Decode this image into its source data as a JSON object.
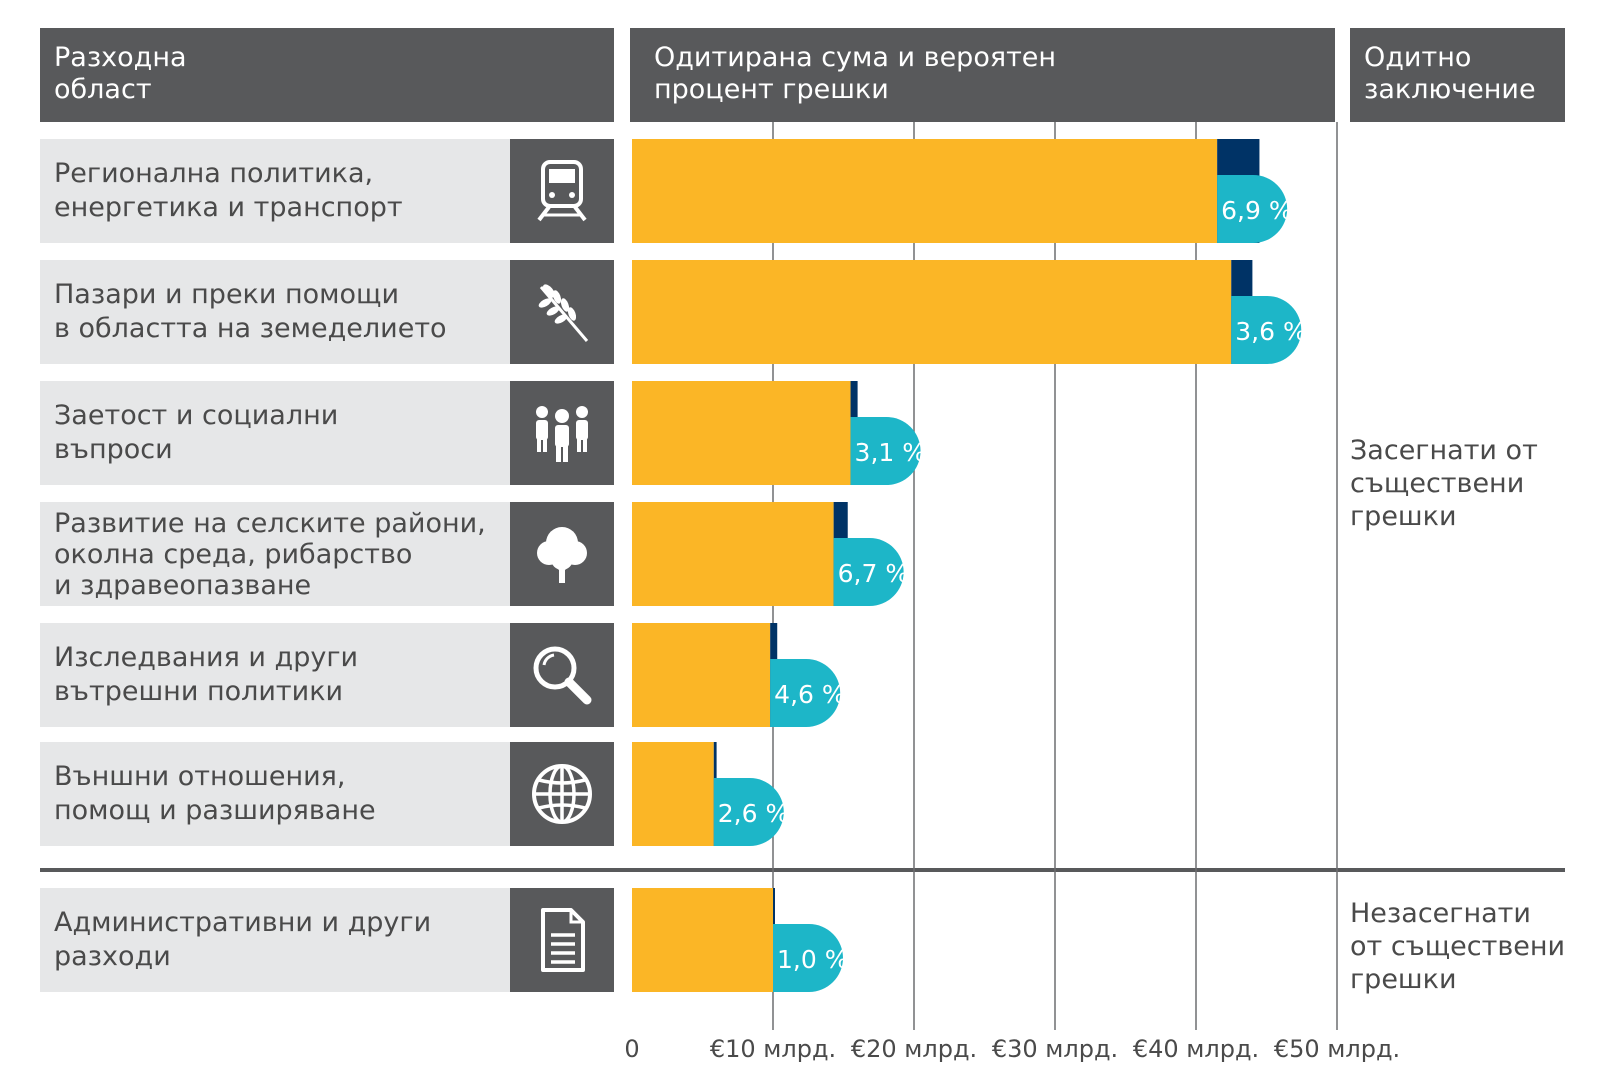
{
  "headers": {
    "area": "Разходна\nобласт",
    "amount": "Одитирана сума и вероятен\nпроцент грешки",
    "opinion": "Одитно\nзаключение"
  },
  "rows": [
    {
      "label": "Регионална политика,\nенергетика и транспорт",
      "icon": "train-icon"
    },
    {
      "label": "Пазари и преки помощи\nв областта на земеделието",
      "icon": "wheat-icon"
    },
    {
      "label": "Заетост и социални\nвъпроси",
      "icon": "people-icon"
    },
    {
      "label": "Развитие на селските райони,\nоколна среда, рибарство\nи здравеопазване",
      "icon": "tree-icon"
    },
    {
      "label": "Изследвания и други\nвътрешни политики",
      "icon": "magnifier-icon"
    },
    {
      "label": "Външни отношения,\nпомощ и разширяване",
      "icon": "globe-icon"
    },
    {
      "label": "Административни и други\nразходи",
      "icon": "document-icon"
    }
  ],
  "opinions": {
    "affected": "Засегнати от\nсъществени\nгрешки",
    "not_affected": "Незасегнати\nот съществени\nгрешки"
  },
  "colors": {
    "header": "#58595b",
    "label_bg": "#e6e7e8",
    "bar": "#fbb626",
    "error": "#003366",
    "bubble": "#1db6c8",
    "grid": "#6d6e70"
  },
  "chart_data": {
    "type": "bar",
    "orientation": "horizontal",
    "stacked": true,
    "categories": [
      "Регионална политика, енергетика и транспорт",
      "Пазари и преки помощи в областта на земеделието",
      "Заетост и социални въпроси",
      "Развитие на селските райони, околна среда, рибарство и здравеопазване",
      "Изследвания и други вътрешни политики",
      "Външни отношения, помощ и разширяване",
      "Административни и други разходи"
    ],
    "series": [
      {
        "name": "Одитирана сума",
        "values": [
          41.5,
          42.5,
          15.5,
          14.3,
          9.8,
          5.8,
          10.0
        ]
      },
      {
        "name": "Вероятен процент грешки",
        "values": [
          3.0,
          1.5,
          0.5,
          1.0,
          0.5,
          0.2,
          0.1
        ]
      }
    ],
    "error_labels": [
      "6,9 %",
      "3,6 %",
      "3,1 %",
      "6,7 %",
      "4,6 %",
      "2,6 %",
      "1,0 %"
    ],
    "x_ticks": [
      0,
      10,
      20,
      30,
      40,
      50
    ],
    "x_tick_labels": [
      "0",
      "€10 млрд.",
      "€20 млрд.",
      "€30 млрд.",
      "€40 млрд.",
      "€50 млрд."
    ],
    "xlim": [
      0,
      50
    ],
    "grid": true,
    "title": "Одитирана сума и вероятен процент грешки"
  }
}
